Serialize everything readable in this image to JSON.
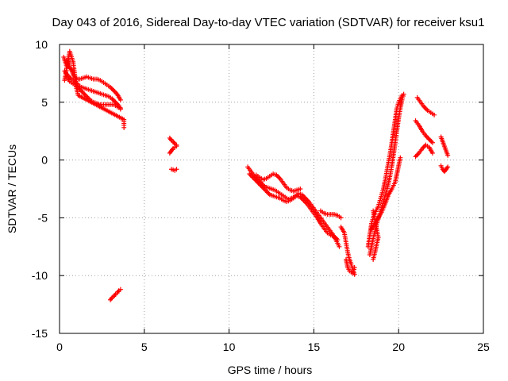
{
  "chart_data": {
    "type": "scatter",
    "title": "Day 043 of 2016, Sidereal Day-to-day VTEC variation (SDTVAR) for receiver ksu1",
    "xlabel": "GPS time / hours",
    "ylabel": "SDTVAR / TECUs",
    "xlim": [
      0,
      25
    ],
    "ylim": [
      -15,
      10
    ],
    "xticks": [
      0,
      5,
      10,
      15,
      20,
      25
    ],
    "yticks": [
      -15,
      -10,
      -5,
      0,
      5,
      10
    ],
    "grid": true,
    "marker": "+",
    "series": [
      {
        "name": "SDTVAR",
        "color": "#ff0000",
        "segments": [
          [
            [
              0.25,
              8.9
            ],
            [
              0.4,
              8.2
            ],
            [
              0.5,
              8.7
            ],
            [
              0.6,
              8.0
            ],
            [
              0.7,
              7.8
            ],
            [
              0.8,
              7.4
            ],
            [
              0.9,
              7.2
            ],
            [
              1.0,
              7.0
            ],
            [
              1.2,
              7.0
            ],
            [
              1.4,
              7.1
            ],
            [
              1.6,
              7.2
            ],
            [
              1.8,
              7.1
            ],
            [
              2.0,
              7.0
            ],
            [
              2.2,
              7.0
            ],
            [
              2.4,
              6.9
            ],
            [
              2.6,
              6.7
            ],
            [
              2.8,
              6.5
            ],
            [
              3.0,
              6.3
            ],
            [
              3.2,
              6.0
            ],
            [
              3.4,
              5.7
            ],
            [
              3.6,
              5.2
            ]
          ],
          [
            [
              0.3,
              7.7
            ],
            [
              0.5,
              7.3
            ],
            [
              0.7,
              7.0
            ],
            [
              0.9,
              6.8
            ],
            [
              1.1,
              6.5
            ],
            [
              1.3,
              6.3
            ],
            [
              1.5,
              6.2
            ],
            [
              1.7,
              6.1
            ],
            [
              1.9,
              6.0
            ],
            [
              2.1,
              5.9
            ],
            [
              2.3,
              5.8
            ],
            [
              2.5,
              5.7
            ],
            [
              2.7,
              5.6
            ],
            [
              2.9,
              5.5
            ],
            [
              3.1,
              5.3
            ],
            [
              3.3,
              5.0
            ],
            [
              3.5,
              4.7
            ],
            [
              3.6,
              4.4
            ]
          ],
          [
            [
              0.4,
              7.2
            ],
            [
              0.6,
              6.8
            ],
            [
              0.8,
              6.6
            ],
            [
              1.0,
              6.4
            ],
            [
              1.2,
              6.1
            ],
            [
              1.4,
              5.8
            ],
            [
              1.6,
              5.5
            ],
            [
              1.8,
              5.2
            ],
            [
              2.0,
              5.0
            ],
            [
              2.2,
              4.9
            ],
            [
              2.4,
              4.8
            ],
            [
              2.6,
              4.8
            ],
            [
              2.8,
              4.8
            ],
            [
              3.0,
              4.8
            ],
            [
              3.2,
              4.8
            ],
            [
              3.4,
              4.6
            ],
            [
              3.6,
              4.5
            ]
          ],
          [
            [
              0.3,
              6.9
            ],
            [
              0.6,
              9.4
            ],
            [
              0.8,
              8.5
            ],
            [
              1.0,
              6.2
            ],
            [
              1.1,
              5.6
            ],
            [
              3.8,
              3.5
            ],
            [
              3.8,
              3.0
            ],
            [
              3.8,
              2.8
            ]
          ],
          [
            [
              3.0,
              -12.1
            ],
            [
              3.1,
              -11.9
            ],
            [
              3.2,
              -11.8
            ],
            [
              3.3,
              -11.6
            ],
            [
              3.4,
              -11.5
            ],
            [
              3.5,
              -11.3
            ],
            [
              3.6,
              -11.2
            ]
          ],
          [
            [
              6.5,
              1.9
            ],
            [
              6.6,
              1.7
            ],
            [
              6.7,
              1.6
            ],
            [
              6.8,
              1.4
            ],
            [
              6.9,
              1.3
            ]
          ],
          [
            [
              6.5,
              0.6
            ],
            [
              6.6,
              0.8
            ],
            [
              6.7,
              1.0
            ],
            [
              6.8,
              1.1
            ],
            [
              6.9,
              1.2
            ]
          ],
          [
            [
              6.6,
              -0.8
            ],
            [
              6.8,
              -0.9
            ],
            [
              6.9,
              -0.8
            ]
          ],
          [
            [
              11.1,
              -0.6
            ],
            [
              11.3,
              -1.0
            ],
            [
              11.5,
              -1.4
            ],
            [
              11.7,
              -1.7
            ],
            [
              11.9,
              -2.0
            ],
            [
              12.1,
              -2.3
            ],
            [
              12.3,
              -2.4
            ],
            [
              12.5,
              -2.5
            ],
            [
              12.7,
              -2.6
            ],
            [
              12.9,
              -2.8
            ],
            [
              13.1,
              -3.0
            ],
            [
              13.3,
              -3.2
            ],
            [
              13.5,
              -3.4
            ],
            [
              13.7,
              -3.3
            ],
            [
              13.9,
              -3.1
            ],
            [
              14.1,
              -2.9
            ],
            [
              14.3,
              -3.0
            ],
            [
              14.5,
              -3.3
            ],
            [
              14.7,
              -3.6
            ],
            [
              14.9,
              -4.0
            ],
            [
              15.1,
              -4.4
            ],
            [
              15.3,
              -4.8
            ],
            [
              15.5,
              -5.2
            ],
            [
              15.7,
              -5.6
            ],
            [
              15.9,
              -6.0
            ],
            [
              16.1,
              -6.4
            ],
            [
              16.3,
              -6.9
            ],
            [
              16.5,
              -7.5
            ]
          ],
          [
            [
              11.2,
              -1.2
            ],
            [
              11.4,
              -1.5
            ],
            [
              11.6,
              -1.8
            ],
            [
              11.8,
              -2.1
            ],
            [
              12.0,
              -2.4
            ],
            [
              12.2,
              -2.7
            ],
            [
              12.4,
              -3.0
            ],
            [
              12.6,
              -3.1
            ],
            [
              12.8,
              -3.2
            ],
            [
              13.0,
              -3.3
            ],
            [
              13.2,
              -3.5
            ],
            [
              13.4,
              -3.6
            ],
            [
              13.6,
              -3.5
            ],
            [
              13.8,
              -3.3
            ],
            [
              14.0,
              -3.1
            ],
            [
              14.2,
              -3.2
            ],
            [
              14.4,
              -3.5
            ],
            [
              14.6,
              -3.8
            ],
            [
              14.8,
              -4.2
            ],
            [
              15.0,
              -4.6
            ],
            [
              15.2,
              -5.0
            ],
            [
              15.4,
              -5.5
            ],
            [
              15.6,
              -5.9
            ],
            [
              15.8,
              -6.3
            ],
            [
              16.0,
              -6.5
            ],
            [
              16.2,
              -6.6
            ],
            [
              16.4,
              -6.9
            ]
          ],
          [
            [
              11.6,
              -1.3
            ],
            [
              11.8,
              -1.5
            ],
            [
              12.0,
              -1.7
            ],
            [
              12.2,
              -1.6
            ],
            [
              12.4,
              -1.4
            ],
            [
              12.6,
              -1.2
            ],
            [
              12.8,
              -1.3
            ],
            [
              13.0,
              -1.6
            ],
            [
              13.2,
              -2.0
            ],
            [
              13.4,
              -2.4
            ],
            [
              13.6,
              -2.6
            ],
            [
              13.8,
              -2.7
            ],
            [
              14.0,
              -2.6
            ],
            [
              14.2,
              -2.5
            ]
          ],
          [
            [
              15.4,
              -4.4
            ],
            [
              15.6,
              -4.6
            ],
            [
              15.8,
              -4.7
            ],
            [
              16.0,
              -4.7
            ],
            [
              16.2,
              -4.7
            ],
            [
              16.4,
              -4.8
            ],
            [
              16.6,
              -5.0
            ]
          ],
          [
            [
              16.6,
              -5.8
            ],
            [
              16.8,
              -6.3
            ],
            [
              17.0,
              -8.0
            ],
            [
              17.1,
              -8.6
            ],
            [
              17.2,
              -9.0
            ],
            [
              17.3,
              -9.5
            ],
            [
              17.4,
              -9.9
            ]
          ],
          [
            [
              16.9,
              -8.6
            ],
            [
              17.0,
              -9.3
            ],
            [
              17.1,
              -9.6
            ],
            [
              17.3,
              -9.8
            ],
            [
              17.4,
              -9.3
            ]
          ],
          [
            [
              18.2,
              -7.5
            ],
            [
              18.3,
              -6.5
            ],
            [
              18.4,
              -5.5
            ],
            [
              18.5,
              -5.0
            ],
            [
              18.6,
              -4.6
            ],
            [
              18.7,
              -4.3
            ],
            [
              18.8,
              -4.0
            ],
            [
              18.9,
              -3.5
            ],
            [
              19.0,
              -3.0
            ],
            [
              19.1,
              -2.5
            ],
            [
              19.2,
              -1.8
            ],
            [
              19.3,
              -1.0
            ],
            [
              19.4,
              -0.2
            ],
            [
              19.5,
              0.6
            ],
            [
              19.6,
              1.5
            ],
            [
              19.7,
              2.5
            ],
            [
              19.8,
              3.5
            ],
            [
              19.9,
              4.5
            ],
            [
              20.0,
              5.0
            ],
            [
              20.1,
              5.3
            ],
            [
              20.2,
              5.6
            ]
          ],
          [
            [
              18.3,
              -8.2
            ],
            [
              18.4,
              -7.5
            ],
            [
              18.5,
              -6.8
            ],
            [
              18.6,
              -6.2
            ],
            [
              18.7,
              -5.6
            ],
            [
              18.8,
              -5.1
            ],
            [
              18.9,
              -4.6
            ],
            [
              19.0,
              -4.1
            ],
            [
              19.1,
              -3.6
            ],
            [
              19.2,
              -3.1
            ],
            [
              19.3,
              -2.6
            ],
            [
              19.4,
              -2.0
            ],
            [
              19.5,
              -1.3
            ],
            [
              19.6,
              -0.5
            ],
            [
              19.7,
              0.5
            ],
            [
              19.8,
              1.5
            ],
            [
              19.9,
              2.6
            ],
            [
              20.0,
              3.6
            ],
            [
              20.1,
              4.5
            ],
            [
              20.2,
              5.2
            ],
            [
              20.3,
              5.7
            ]
          ],
          [
            [
              18.4,
              -6.0
            ],
            [
              18.6,
              -5.5
            ],
            [
              18.8,
              -5.0
            ],
            [
              19.0,
              -4.5
            ],
            [
              19.2,
              -3.8
            ],
            [
              19.4,
              -3.0
            ],
            [
              19.6,
              -2.5
            ],
            [
              19.8,
              -1.9
            ],
            [
              19.9,
              -1.2
            ],
            [
              20.0,
              -0.5
            ],
            [
              20.1,
              0.2
            ]
          ],
          [
            [
              18.5,
              -4.4
            ],
            [
              18.8,
              -6.7
            ],
            [
              18.6,
              -8.0
            ],
            [
              18.5,
              -8.6
            ]
          ],
          [
            [
              21.1,
              5.4
            ],
            [
              21.3,
              5.0
            ],
            [
              21.5,
              4.6
            ],
            [
              21.7,
              4.3
            ],
            [
              21.9,
              4.1
            ],
            [
              22.1,
              3.9
            ]
          ],
          [
            [
              21.0,
              3.4
            ],
            [
              21.2,
              3.0
            ],
            [
              21.4,
              2.5
            ],
            [
              21.6,
              2.1
            ],
            [
              21.8,
              1.8
            ],
            [
              22.0,
              1.5
            ]
          ],
          [
            [
              21.0,
              0.3
            ],
            [
              21.2,
              0.6
            ],
            [
              21.4,
              1.0
            ],
            [
              21.6,
              1.3
            ],
            [
              21.8,
              1.1
            ],
            [
              22.0,
              0.6
            ]
          ],
          [
            [
              22.5,
              2.0
            ],
            [
              22.6,
              1.6
            ],
            [
              22.7,
              1.2
            ],
            [
              22.8,
              0.8
            ],
            [
              22.9,
              0.4
            ]
          ],
          [
            [
              22.5,
              -0.5
            ],
            [
              22.6,
              -0.8
            ],
            [
              22.7,
              -1.0
            ],
            [
              22.8,
              -0.8
            ],
            [
              22.9,
              -0.6
            ]
          ]
        ]
      }
    ]
  }
}
